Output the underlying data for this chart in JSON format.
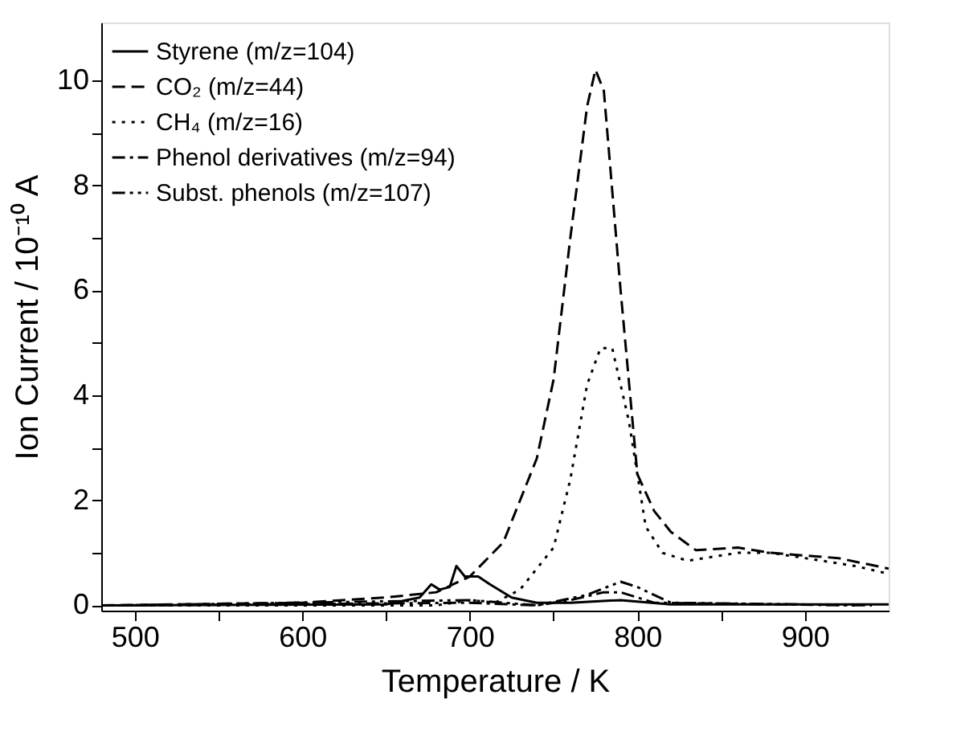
{
  "chart_data": {
    "type": "line",
    "xlabel": "Temperature  / K",
    "ylabel": "Ion Current  / 10⁻¹⁰ A",
    "xlim": [
      480,
      950
    ],
    "xticks": [
      500,
      {
        "value": 550,
        "label": null
      },
      600,
      {
        "value": 650,
        "label": null
      },
      700,
      {
        "value": 750,
        "label": null
      },
      800,
      {
        "value": 850,
        "label": null
      },
      900
    ],
    "ylim": [
      -0.1,
      11.1
    ],
    "yticks": [
      0,
      {
        "value": 1,
        "label": null
      },
      2,
      {
        "value": 3,
        "label": null
      },
      4,
      {
        "value": 5,
        "label": null
      },
      6,
      {
        "value": 7,
        "label": null
      },
      8,
      {
        "value": 9,
        "label": null
      },
      10
    ],
    "grid": false,
    "legend": "top left",
    "marker": "none",
    "series": [
      {
        "name": "Styrene (m/z=104)",
        "color": "#000000",
        "line_style": "solid",
        "x": [
          480,
          650,
          670,
          677,
          682,
          688,
          692,
          697,
          705,
          712,
          725,
          740,
          760,
          790,
          820,
          950
        ],
        "values": [
          0,
          0.02,
          0.15,
          0.4,
          0.3,
          0.35,
          0.75,
          0.55,
          0.55,
          0.4,
          0.15,
          0.05,
          0.05,
          0.1,
          0.02,
          0.02
        ]
      },
      {
        "name": "CO₂ (m/z=44)",
        "color": "#000000",
        "line_style": "dashed",
        "x": [
          480,
          600,
          650,
          680,
          700,
          720,
          740,
          750,
          760,
          770,
          775,
          780,
          790,
          800,
          810,
          820,
          835,
          860,
          880,
          900,
          920,
          950
        ],
        "values": [
          0,
          0.05,
          0.15,
          0.25,
          0.55,
          1.2,
          2.8,
          4.3,
          7,
          9.5,
          10.2,
          9.8,
          6,
          2.5,
          1.8,
          1.4,
          1.05,
          1.1,
          1.0,
          0.95,
          0.9,
          0.7
        ]
      },
      {
        "name": "CH₄ (m/z=16)",
        "color": "#000000",
        "line_style": "dotted",
        "x": [
          480,
          680,
          700,
          715,
          730,
          750,
          760,
          770,
          778,
          785,
          795,
          805,
          815,
          830,
          860,
          880,
          900,
          930,
          950
        ],
        "values": [
          0,
          0,
          0.1,
          0.05,
          0.3,
          1.1,
          2.4,
          4.2,
          4.9,
          4.9,
          3.5,
          1.5,
          1.0,
          0.85,
          1.0,
          1.0,
          0.9,
          0.75,
          0.6
        ]
      },
      {
        "name": "Phenol derivatives (m/z=94)",
        "color": "#000000",
        "line_style": "dashdot",
        "x": [
          500,
          700,
          740,
          760,
          780,
          790,
          810,
          930
        ],
        "values": [
          0,
          0.05,
          0,
          0.1,
          0.25,
          0.25,
          0.05,
          0
        ]
      },
      {
        "name": "Subst. phenols (m/z=107)",
        "color": "#000000",
        "line_style": "dashdotdot",
        "x": [
          490,
          700,
          740,
          770,
          790,
          800,
          820,
          940
        ],
        "values": [
          0,
          0.1,
          0,
          0.2,
          0.45,
          0.35,
          0.05,
          0
        ]
      }
    ]
  }
}
